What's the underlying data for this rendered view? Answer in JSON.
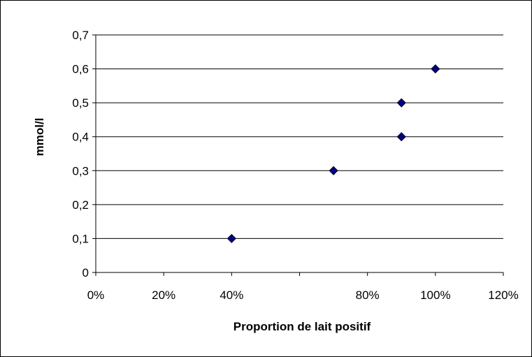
{
  "chart_data": {
    "type": "scatter",
    "title": "",
    "xlabel": "Proportion de lait positif",
    "ylabel": "mmol/l",
    "xlim": [
      0,
      1.2
    ],
    "ylim": [
      0,
      0.7
    ],
    "x_ticks": [
      0,
      0.2,
      0.4,
      0.6,
      0.8,
      1.0,
      1.2
    ],
    "x_tick_labels": [
      "0%",
      "20%",
      "40%",
      "",
      "80%",
      "100%",
      "120%"
    ],
    "y_ticks": [
      0,
      0.1,
      0.2,
      0.3,
      0.4,
      0.5,
      0.6,
      0.7
    ],
    "y_tick_labels": [
      "0",
      "0,1",
      "0,2",
      "0,3",
      "0,4",
      "0,5",
      "0,6",
      "0,7"
    ],
    "grid": "horizontal",
    "legend": "none",
    "marker_color": "#000080",
    "marker": "diamond",
    "points": [
      {
        "x": 0.4,
        "y": 0.1
      },
      {
        "x": 0.7,
        "y": 0.3
      },
      {
        "x": 0.9,
        "y": 0.4
      },
      {
        "x": 0.9,
        "y": 0.5
      },
      {
        "x": 1.0,
        "y": 0.6
      }
    ]
  }
}
